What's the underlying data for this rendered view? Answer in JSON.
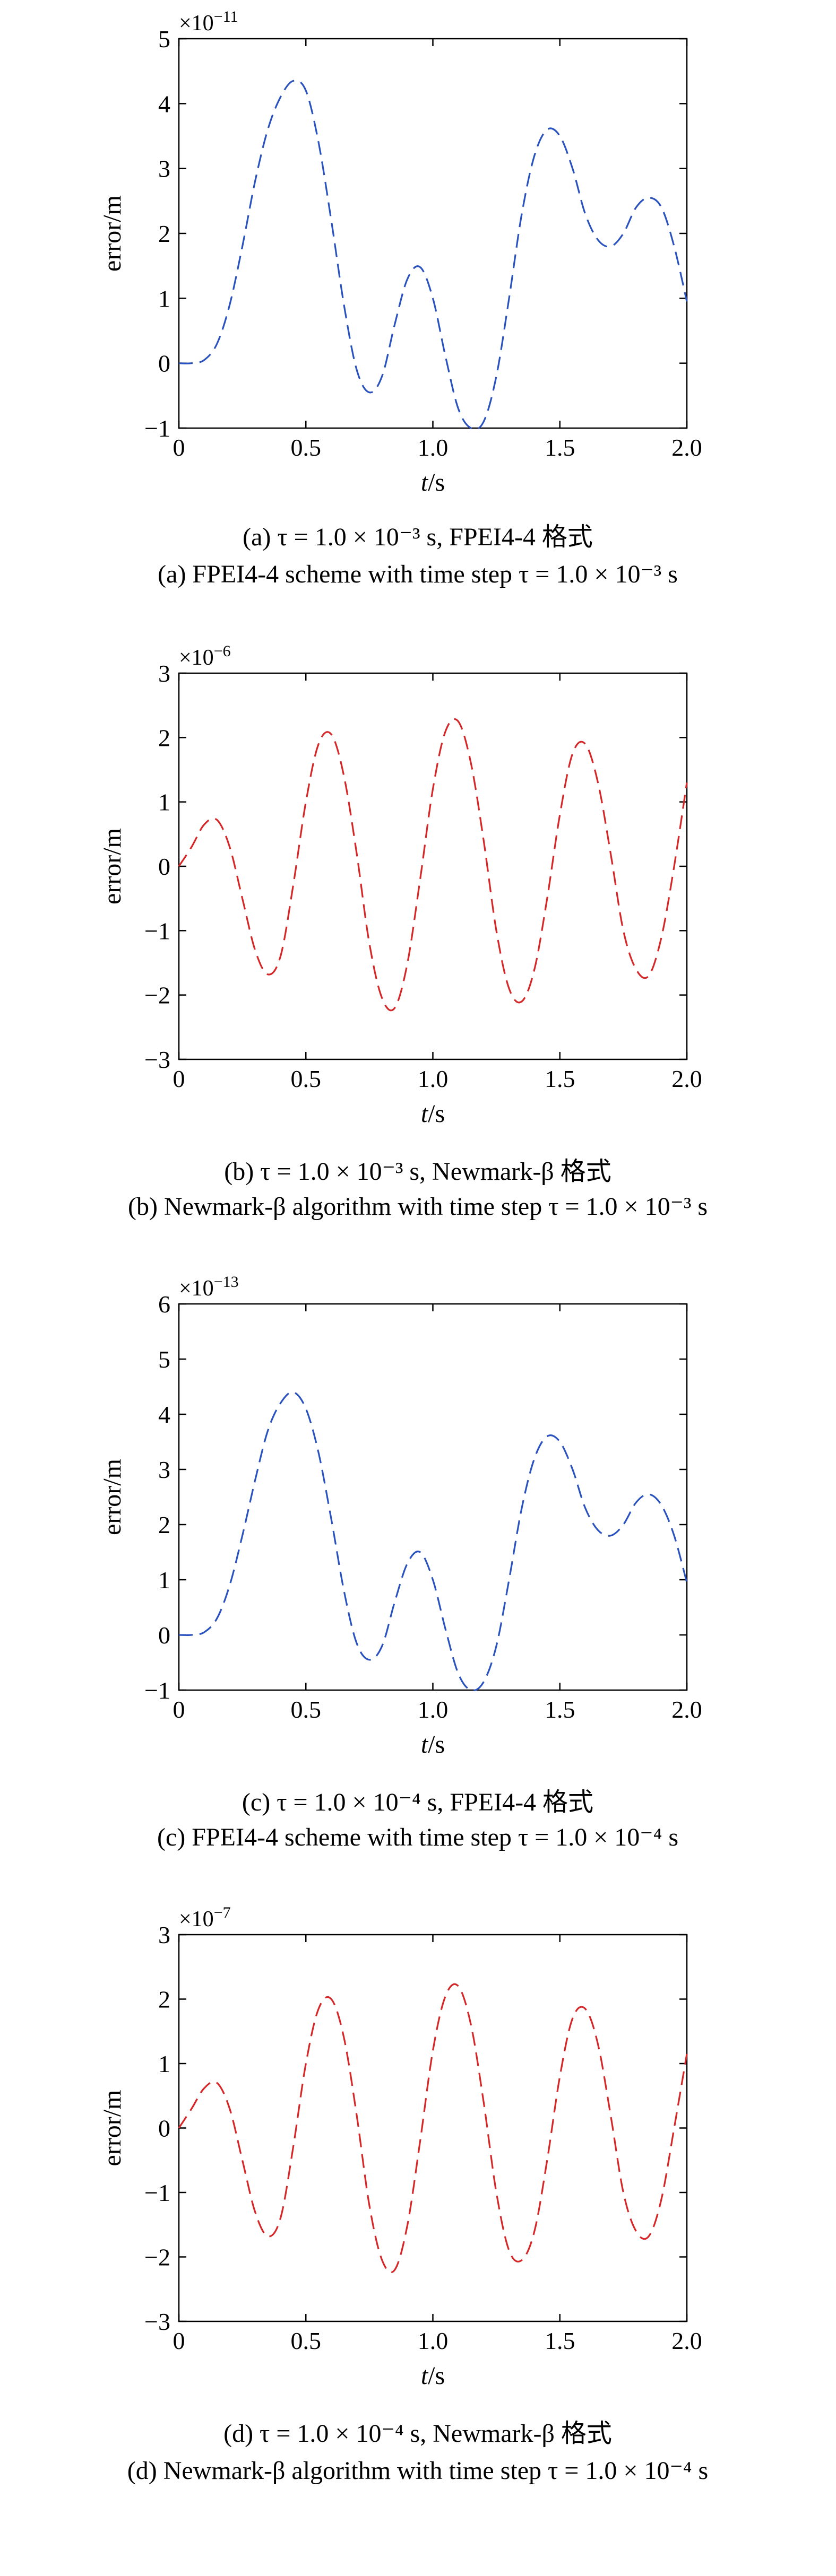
{
  "figure": {
    "panels": [
      {
        "multiplier_base": "×10",
        "multiplier_exp": "−11",
        "caption_zh": "(a) τ = 1.0 × 10⁻³ s, FPEI4-4 格式",
        "caption_en": "(a) FPEI4-4 scheme with time step τ = 1.0 × 10⁻³ s"
      },
      {
        "multiplier_base": "×10",
        "multiplier_exp": "−6",
        "caption_zh": "(b) τ = 1.0 × 10⁻³ s, Newmark-β 格式",
        "caption_en": "(b) Newmark-β algorithm with time step τ = 1.0 × 10⁻³ s"
      },
      {
        "multiplier_base": "×10",
        "multiplier_exp": "−13",
        "caption_zh": "(c) τ = 1.0 × 10⁻⁴ s, FPEI4-4 格式",
        "caption_en": "(c) FPEI4-4 scheme with time step τ = 1.0 × 10⁻⁴ s"
      },
      {
        "multiplier_base": "×10",
        "multiplier_exp": "−7",
        "caption_zh": "(d) τ = 1.0 × 10⁻⁴ s, Newmark-β 格式",
        "caption_en": "(d) Newmark-β algorithm with time step τ = 1.0 × 10⁻⁴ s"
      }
    ]
  },
  "chart_data": [
    {
      "type": "line",
      "xlabel": "t/s",
      "ylabel": "error/m",
      "xlim": [
        0,
        2.0
      ],
      "ylim": [
        -1,
        5
      ],
      "xticks": [
        "0",
        "0.5",
        "1.0",
        "1.5",
        "2.0"
      ],
      "yticks": [
        "−1",
        "0",
        "1",
        "2",
        "3",
        "4",
        "5"
      ],
      "y_scale": "×10⁻¹¹",
      "grid": false,
      "series": [
        {
          "color": "#2a52be",
          "style": "dashed",
          "x": [
            0,
            0.05,
            0.1,
            0.15,
            0.2,
            0.25,
            0.3,
            0.35,
            0.4,
            0.45,
            0.5,
            0.55,
            0.6,
            0.65,
            0.7,
            0.75,
            0.8,
            0.85,
            0.9,
            0.95,
            1.0,
            1.05,
            1.1,
            1.15,
            1.2,
            1.25,
            1.3,
            1.35,
            1.4,
            1.45,
            1.5,
            1.55,
            1.6,
            1.65,
            1.7,
            1.75,
            1.8,
            1.85,
            1.9,
            1.95,
            2.0
          ],
          "y": [
            0.0,
            0.0,
            0.05,
            0.3,
            0.9,
            1.8,
            2.8,
            3.6,
            4.1,
            4.35,
            4.2,
            3.4,
            2.2,
            0.9,
            -0.1,
            -0.45,
            -0.2,
            0.6,
            1.3,
            1.48,
            1.0,
            0.1,
            -0.7,
            -1.0,
            -0.9,
            -0.2,
            1.0,
            2.3,
            3.2,
            3.6,
            3.5,
            3.0,
            2.3,
            1.9,
            1.8,
            2.0,
            2.4,
            2.55,
            2.4,
            1.8,
            0.95
          ]
        }
      ]
    },
    {
      "type": "line",
      "xlabel": "t/s",
      "ylabel": "error/m",
      "xlim": [
        0,
        2.0
      ],
      "ylim": [
        -3,
        3
      ],
      "xticks": [
        "0",
        "0.5",
        "1.0",
        "1.5",
        "2.0"
      ],
      "yticks": [
        "−3",
        "−2",
        "−1",
        "0",
        "1",
        "2",
        "3"
      ],
      "y_scale": "×10⁻⁶",
      "grid": false,
      "series": [
        {
          "color": "#d62728",
          "style": "dashed",
          "x": [
            0,
            0.05,
            0.1,
            0.15,
            0.2,
            0.25,
            0.3,
            0.35,
            0.4,
            0.45,
            0.5,
            0.55,
            0.6,
            0.65,
            0.7,
            0.75,
            0.8,
            0.85,
            0.9,
            0.95,
            1.0,
            1.05,
            1.1,
            1.15,
            1.2,
            1.25,
            1.3,
            1.35,
            1.4,
            1.45,
            1.5,
            1.55,
            1.6,
            1.65,
            1.7,
            1.75,
            1.8,
            1.85,
            1.9,
            1.95,
            2.0
          ],
          "y": [
            0.0,
            0.3,
            0.65,
            0.72,
            0.3,
            -0.5,
            -1.3,
            -1.68,
            -1.4,
            -0.3,
            1.0,
            1.9,
            2.05,
            1.4,
            0.2,
            -1.2,
            -2.05,
            -2.2,
            -1.5,
            -0.2,
            1.2,
            2.1,
            2.25,
            1.6,
            0.4,
            -1.0,
            -1.9,
            -2.1,
            -1.6,
            -0.5,
            0.8,
            1.75,
            1.9,
            1.3,
            0.2,
            -1.0,
            -1.6,
            -1.7,
            -1.1,
            0.0,
            1.3
          ]
        }
      ]
    },
    {
      "type": "line",
      "xlabel": "t/s",
      "ylabel": "error/m",
      "xlim": [
        0,
        2.0
      ],
      "ylim": [
        -1,
        6
      ],
      "xticks": [
        "0",
        "0.5",
        "1.0",
        "1.5",
        "2.0"
      ],
      "yticks": [
        "−1",
        "0",
        "1",
        "2",
        "3",
        "4",
        "5",
        "6"
      ],
      "y_scale": "×10⁻¹³",
      "grid": false,
      "series": [
        {
          "color": "#2a52be",
          "style": "dashed",
          "x": [
            0,
            0.05,
            0.1,
            0.15,
            0.2,
            0.25,
            0.3,
            0.35,
            0.4,
            0.45,
            0.5,
            0.55,
            0.6,
            0.65,
            0.7,
            0.75,
            0.8,
            0.85,
            0.9,
            0.95,
            1.0,
            1.05,
            1.1,
            1.15,
            1.2,
            1.25,
            1.3,
            1.35,
            1.4,
            1.45,
            1.5,
            1.55,
            1.6,
            1.65,
            1.7,
            1.75,
            1.8,
            1.85,
            1.9,
            1.95,
            2.0
          ],
          "y": [
            0.0,
            0.0,
            0.05,
            0.3,
            0.9,
            1.8,
            2.8,
            3.7,
            4.2,
            4.4,
            4.1,
            3.3,
            2.1,
            0.8,
            -0.15,
            -0.45,
            -0.2,
            0.6,
            1.3,
            1.5,
            1.0,
            0.1,
            -0.7,
            -1.0,
            -0.85,
            -0.2,
            1.0,
            2.3,
            3.2,
            3.6,
            3.5,
            3.0,
            2.3,
            1.9,
            1.8,
            2.0,
            2.4,
            2.55,
            2.35,
            1.8,
            0.95
          ]
        }
      ]
    },
    {
      "type": "line",
      "xlabel": "t/s",
      "ylabel": "error/m",
      "xlim": [
        0,
        2.0
      ],
      "ylim": [
        -3,
        3
      ],
      "xticks": [
        "0",
        "0.5",
        "1.0",
        "1.5",
        "2.0"
      ],
      "yticks": [
        "−3",
        "−2",
        "−1",
        "0",
        "1",
        "2",
        "3"
      ],
      "y_scale": "×10⁻⁷",
      "grid": false,
      "series": [
        {
          "color": "#d62728",
          "style": "dashed",
          "x": [
            0,
            0.05,
            0.1,
            0.15,
            0.2,
            0.25,
            0.3,
            0.35,
            0.4,
            0.45,
            0.5,
            0.55,
            0.6,
            0.65,
            0.7,
            0.75,
            0.8,
            0.85,
            0.9,
            0.95,
            1.0,
            1.05,
            1.1,
            1.15,
            1.2,
            1.25,
            1.3,
            1.35,
            1.4,
            1.45,
            1.5,
            1.55,
            1.6,
            1.65,
            1.7,
            1.75,
            1.8,
            1.85,
            1.9,
            1.95,
            2.0
          ],
          "y": [
            0.0,
            0.3,
            0.62,
            0.7,
            0.3,
            -0.5,
            -1.3,
            -1.68,
            -1.4,
            -0.3,
            1.0,
            1.85,
            2.0,
            1.4,
            0.2,
            -1.2,
            -2.05,
            -2.2,
            -1.5,
            -0.2,
            1.2,
            2.05,
            2.2,
            1.6,
            0.4,
            -1.0,
            -1.9,
            -2.05,
            -1.6,
            -0.5,
            0.8,
            1.7,
            1.85,
            1.3,
            0.2,
            -1.0,
            -1.6,
            -1.68,
            -1.1,
            0.0,
            1.15
          ]
        }
      ]
    }
  ]
}
